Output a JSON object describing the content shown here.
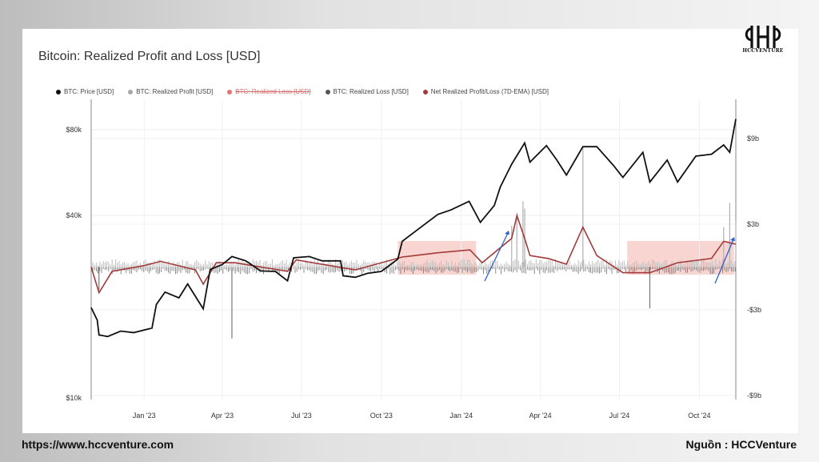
{
  "chart_data": {
    "type": "line",
    "title": "Bitcoin: Realized Profit and Loss [USD]",
    "legend_position": "top",
    "legend": [
      {
        "label": "BTC: Price [USD]",
        "color": "#111111",
        "hidden": false
      },
      {
        "label": "BTC: Realized Profit [USD]",
        "color": "#a8a8a8",
        "hidden": false
      },
      {
        "label": "BTC: Realized Loss [USD]",
        "color": "#e57373",
        "hidden": true
      },
      {
        "label": "BTC: Realized Loss [USD]",
        "color": "#555555",
        "hidden": false
      },
      {
        "label": "Net Realized Profit/Loss (7D-EMA) [USD]",
        "color": "#a33a3a",
        "hidden": false
      }
    ],
    "y_left": {
      "scale": "log",
      "ticks": [
        "$10k",
        "$40k",
        "$80k"
      ],
      "ylim": [
        10000,
        80000
      ]
    },
    "y_right": {
      "scale": "linear",
      "ticks": [
        "$9b",
        "$3b",
        "-$3b",
        "-$9b"
      ],
      "ylim": [
        -9,
        9
      ]
    },
    "x_ticks": [
      "Jan '23",
      "Apr '23",
      "Jul '23",
      "Oct '23",
      "Jan '24",
      "Apr '24",
      "Jul '24",
      "Oct '24"
    ],
    "x_range": [
      "2022-11-01",
      "2024-11-12"
    ],
    "grid": true,
    "series": [
      {
        "name": "BTC: Price [USD]",
        "axis": "left",
        "points": [
          [
            "2022-11-01",
            20400
          ],
          [
            "2022-11-08",
            18500
          ],
          [
            "2022-11-10",
            16500
          ],
          [
            "2022-11-20",
            16300
          ],
          [
            "2022-12-05",
            17000
          ],
          [
            "2022-12-20",
            16800
          ],
          [
            "2023-01-10",
            17400
          ],
          [
            "2023-01-15",
            20900
          ],
          [
            "2023-01-25",
            23000
          ],
          [
            "2023-02-10",
            22000
          ],
          [
            "2023-02-20",
            24500
          ],
          [
            "2023-03-10",
            20200
          ],
          [
            "2023-03-18",
            27400
          ],
          [
            "2023-04-01",
            28500
          ],
          [
            "2023-04-12",
            30300
          ],
          [
            "2023-04-28",
            29300
          ],
          [
            "2023-05-15",
            27100
          ],
          [
            "2023-06-01",
            27000
          ],
          [
            "2023-06-15",
            25100
          ],
          [
            "2023-06-22",
            30000
          ],
          [
            "2023-07-10",
            30300
          ],
          [
            "2023-07-25",
            29300
          ],
          [
            "2023-08-15",
            29300
          ],
          [
            "2023-08-18",
            26100
          ],
          [
            "2023-09-01",
            25800
          ],
          [
            "2023-09-15",
            26600
          ],
          [
            "2023-10-01",
            27000
          ],
          [
            "2023-10-20",
            29700
          ],
          [
            "2023-10-25",
            34100
          ],
          [
            "2023-11-10",
            37000
          ],
          [
            "2023-12-05",
            42000
          ],
          [
            "2023-12-20",
            43500
          ],
          [
            "2024-01-10",
            46500
          ],
          [
            "2024-01-23",
            39500
          ],
          [
            "2024-02-08",
            45000
          ],
          [
            "2024-02-15",
            52000
          ],
          [
            "2024-02-28",
            62000
          ],
          [
            "2024-03-14",
            73100
          ],
          [
            "2024-03-20",
            63000
          ],
          [
            "2024-04-08",
            71600
          ],
          [
            "2024-04-20",
            64000
          ],
          [
            "2024-05-01",
            57000
          ],
          [
            "2024-05-20",
            71000
          ],
          [
            "2024-06-05",
            71000
          ],
          [
            "2024-06-25",
            61000
          ],
          [
            "2024-07-05",
            56000
          ],
          [
            "2024-07-28",
            68000
          ],
          [
            "2024-08-05",
            54000
          ],
          [
            "2024-08-25",
            64000
          ],
          [
            "2024-09-06",
            54000
          ],
          [
            "2024-09-27",
            66000
          ],
          [
            "2024-10-15",
            67000
          ],
          [
            "2024-10-29",
            72000
          ],
          [
            "2024-11-05",
            68000
          ],
          [
            "2024-11-12",
            88000
          ]
        ]
      },
      {
        "name": "Net Realized Profit/Loss (7D-EMA) [USD]",
        "axis": "right",
        "points": [
          [
            "2022-11-01",
            0.0
          ],
          [
            "2022-11-10",
            -1.8
          ],
          [
            "2022-11-25",
            -0.3
          ],
          [
            "2023-01-01",
            0.1
          ],
          [
            "2023-01-20",
            0.4
          ],
          [
            "2023-03-01",
            -0.2
          ],
          [
            "2023-03-10",
            -1.2
          ],
          [
            "2023-03-25",
            0.3
          ],
          [
            "2023-04-15",
            0.3
          ],
          [
            "2023-06-15",
            -0.3
          ],
          [
            "2023-06-25",
            0.5
          ],
          [
            "2023-09-01",
            -0.2
          ],
          [
            "2023-10-25",
            0.7
          ],
          [
            "2023-12-05",
            1.0
          ],
          [
            "2024-01-11",
            1.2
          ],
          [
            "2024-01-25",
            0.3
          ],
          [
            "2024-02-28",
            2.0
          ],
          [
            "2024-03-05",
            3.6
          ],
          [
            "2024-03-14",
            2.0
          ],
          [
            "2024-03-20",
            0.8
          ],
          [
            "2024-04-10",
            0.6
          ],
          [
            "2024-05-01",
            0.2
          ],
          [
            "2024-05-20",
            2.8
          ],
          [
            "2024-06-05",
            0.8
          ],
          [
            "2024-07-05",
            -0.4
          ],
          [
            "2024-08-05",
            -0.4
          ],
          [
            "2024-09-06",
            0.3
          ],
          [
            "2024-10-15",
            0.6
          ],
          [
            "2024-10-29",
            1.8
          ],
          [
            "2024-11-12",
            1.6
          ]
        ]
      }
    ]
  },
  "footer": {
    "website": "https://www.hccventure.com",
    "source": "Nguồn : HCCVenture"
  },
  "logo": {
    "text": "HCCVENTURE"
  }
}
